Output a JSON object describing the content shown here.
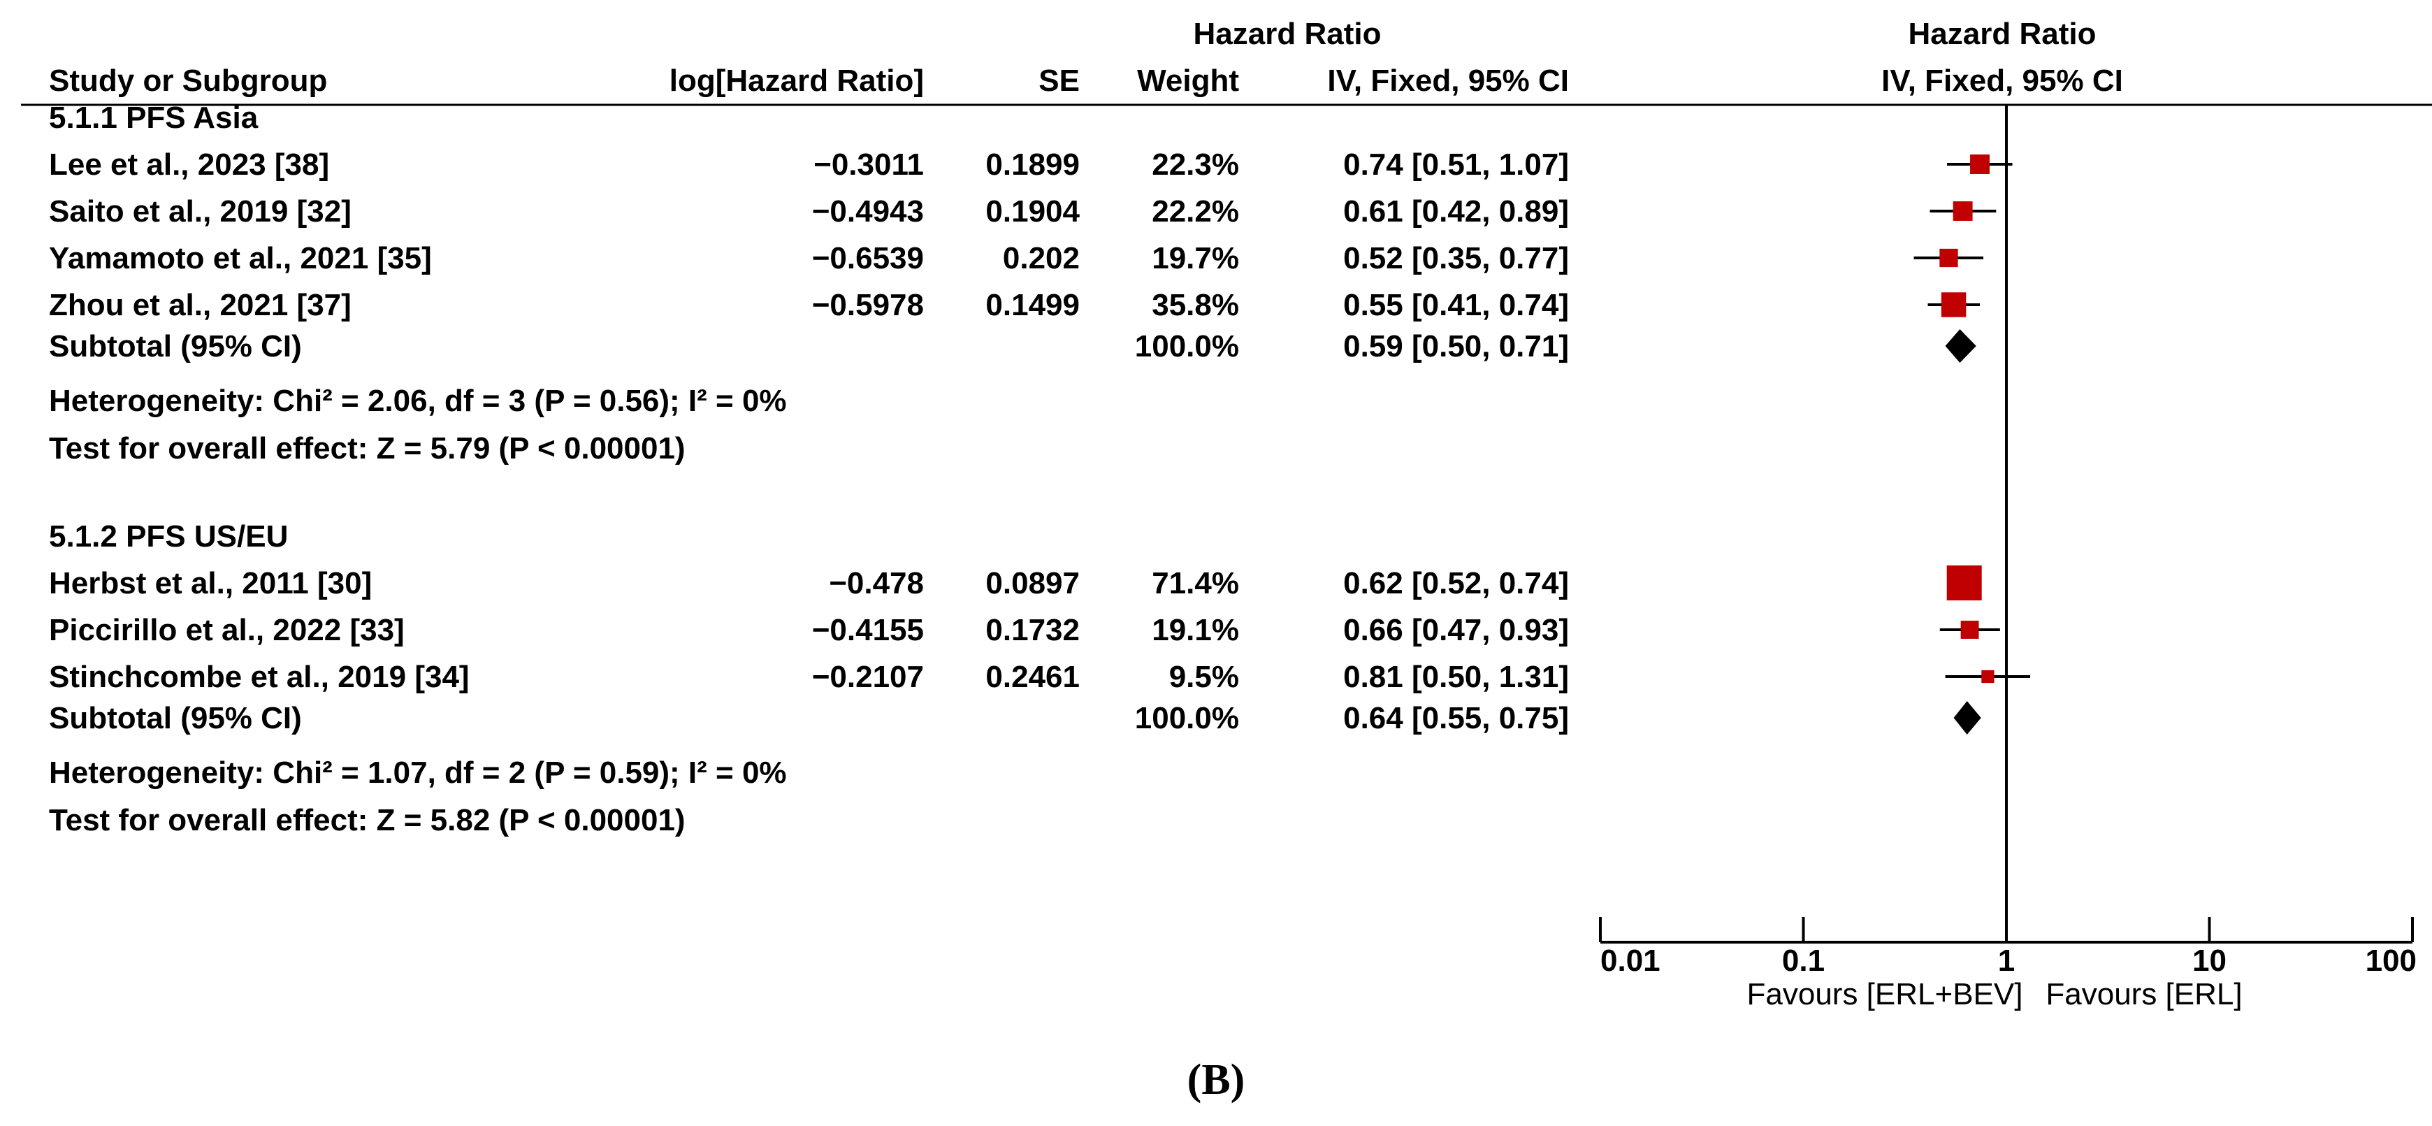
{
  "chart_data": {
    "type": "forest",
    "header": {
      "study": "Study or Subgroup",
      "log_hr": "log[Hazard Ratio]",
      "se": "SE",
      "weight": "Weight",
      "hr_text_title": "Hazard Ratio",
      "hr_text_method": "IV, Fixed, 95% CI",
      "hr_plot_title": "Hazard Ratio",
      "hr_plot_method": "IV, Fixed, 95% CI"
    },
    "subgroups": [
      {
        "title": "5.1.1 PFS Asia",
        "studies": [
          {
            "name": "Lee et al., 2023 [38]",
            "log_hr": "−0.3011",
            "se": "0.1899",
            "weight": "22.3%",
            "weight_value": 22.3,
            "ci_text": "0.74 [0.51, 1.07]",
            "hr": 0.74,
            "lo": 0.51,
            "hi": 1.07
          },
          {
            "name": "Saito et al., 2019 [32]",
            "log_hr": "−0.4943",
            "se": "0.1904",
            "weight": "22.2%",
            "weight_value": 22.2,
            "ci_text": "0.61 [0.42, 0.89]",
            "hr": 0.61,
            "lo": 0.42,
            "hi": 0.89
          },
          {
            "name": "Yamamoto et al., 2021 [35]",
            "log_hr": "−0.6539",
            "se": "0.202",
            "weight": "19.7%",
            "weight_value": 19.7,
            "ci_text": "0.52 [0.35, 0.77]",
            "hr": 0.52,
            "lo": 0.35,
            "hi": 0.77
          },
          {
            "name": "Zhou et al., 2021 [37]",
            "log_hr": "−0.5978",
            "se": "0.1499",
            "weight": "35.8%",
            "weight_value": 35.8,
            "ci_text": "0.55 [0.41, 0.74]",
            "hr": 0.55,
            "lo": 0.41,
            "hi": 0.74
          }
        ],
        "subtotal": {
          "label": "Subtotal (95% CI)",
          "weight": "100.0%",
          "ci_text": "0.59 [0.50, 0.71]",
          "hr": 0.59,
          "lo": 0.5,
          "hi": 0.71
        },
        "heterogeneity": "Heterogeneity: Chi² = 2.06, df = 3 (P = 0.56); I² = 0%",
        "overall_effect": "Test for overall effect: Z = 5.79 (P < 0.00001)"
      },
      {
        "title": "5.1.2 PFS US/EU",
        "studies": [
          {
            "name": "Herbst et al., 2011 [30]",
            "log_hr": "−0.478",
            "se": "0.0897",
            "weight": "71.4%",
            "weight_value": 71.4,
            "ci_text": "0.62 [0.52, 0.74]",
            "hr": 0.62,
            "lo": 0.52,
            "hi": 0.74
          },
          {
            "name": "Piccirillo et al., 2022 [33]",
            "log_hr": "−0.4155",
            "se": "0.1732",
            "weight": "19.1%",
            "weight_value": 19.1,
            "ci_text": "0.66 [0.47, 0.93]",
            "hr": 0.66,
            "lo": 0.47,
            "hi": 0.93
          },
          {
            "name": "Stinchcombe et al., 2019 [34]",
            "log_hr": "−0.2107",
            "se": "0.2461",
            "weight": "9.5%",
            "weight_value": 9.5,
            "ci_text": "0.81 [0.50, 1.31]",
            "hr": 0.81,
            "lo": 0.5,
            "hi": 1.31
          }
        ],
        "subtotal": {
          "label": "Subtotal (95% CI)",
          "weight": "100.0%",
          "ci_text": "0.64 [0.55, 0.75]",
          "hr": 0.64,
          "lo": 0.55,
          "hi": 0.75
        },
        "heterogeneity": "Heterogeneity: Chi² = 1.07, df = 2 (P = 0.59); I² = 0%",
        "overall_effect": "Test for overall effect: Z = 5.82 (P < 0.00001)"
      }
    ],
    "x_axis": {
      "scale": "log",
      "ticks": [
        0.01,
        0.1,
        1,
        10,
        100
      ],
      "tick_labels": [
        "0.01",
        "0.1",
        "1",
        "10",
        "100"
      ],
      "range": [
        0.01,
        100
      ],
      "reference_line": 1
    },
    "favours_left": "Favours [ERL+BEV]",
    "favours_right": "Favours [ERL]",
    "marker_color": "#c00000",
    "diamond_color": "#000000"
  },
  "figure_label": "(B)"
}
